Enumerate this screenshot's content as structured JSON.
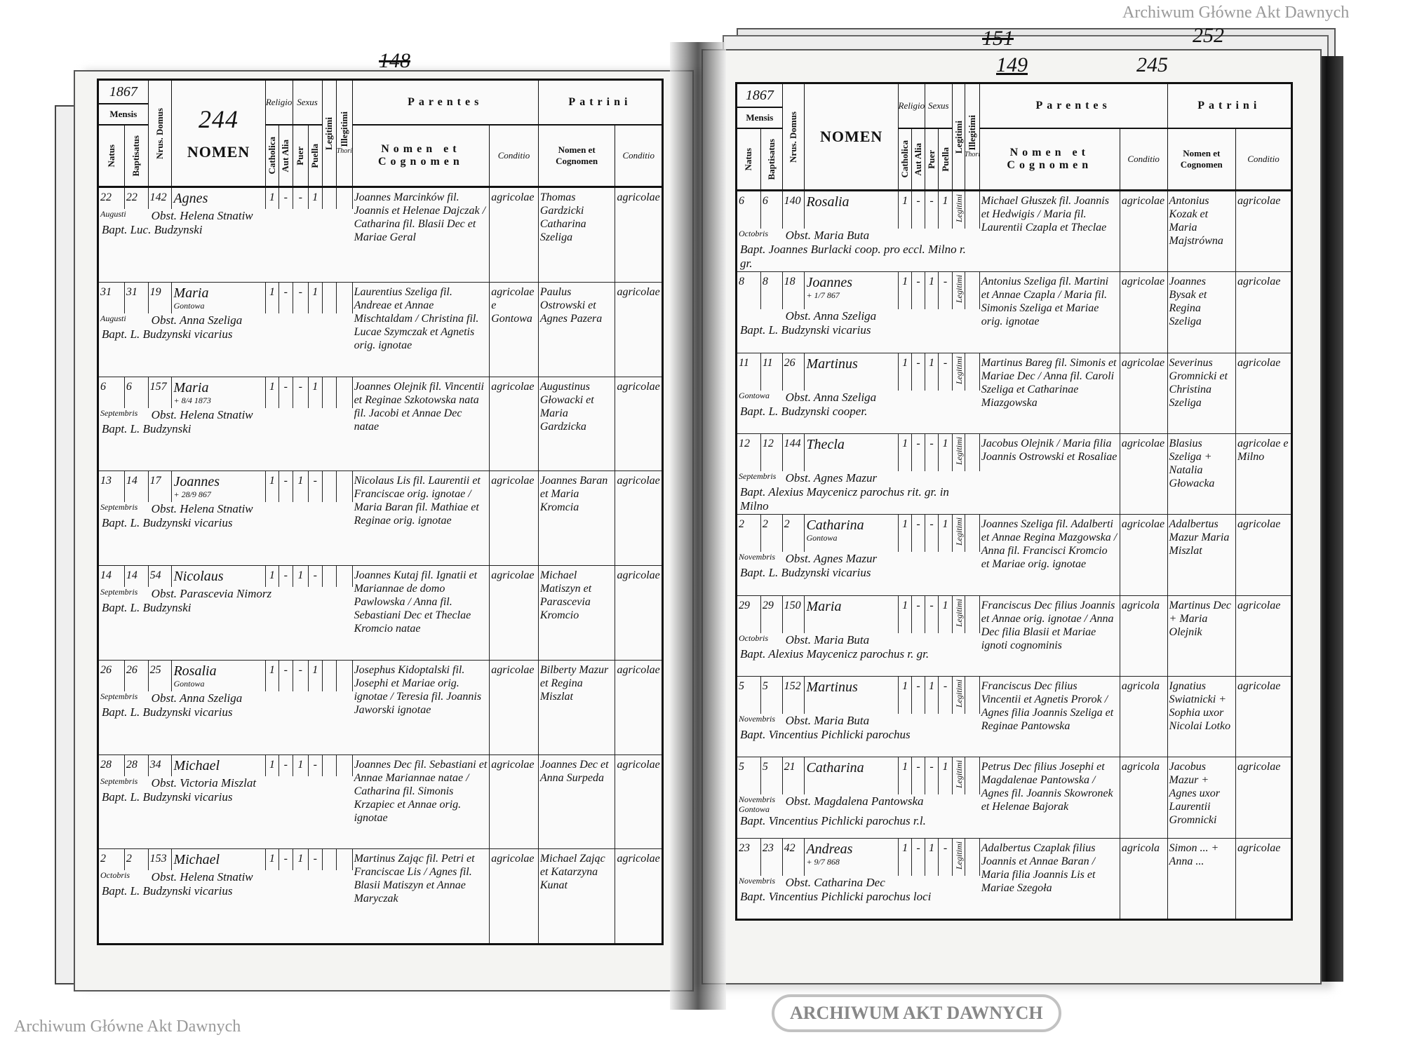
{
  "archive_watermark": "Archiwum Główne Akt Dawnych",
  "seal_text": "ARCHIWUM AKT DAWNYCH",
  "left_page": {
    "page_number": "244",
    "folio_marks": [
      "148"
    ],
    "year": "1867",
    "headers": {
      "mensis": "Mensis",
      "natus": "Natus",
      "baptisatus": "Baptisatus",
      "domus": "Nrus. Domus",
      "nomen": "NOMEN",
      "religio": "Religio",
      "catholica": "Catholica",
      "aut_alia": "Aut Alia",
      "sexus": "Sexus",
      "puer": "Puer",
      "puella": "Puella",
      "legitimi": "Legitimi",
      "illegitimi": "Illegitimi",
      "thori": "Thori",
      "parentes": "Parentes",
      "nomen_et_cognomen": "Nomen et Cognomen",
      "conditio": "Conditio",
      "patrini": "Patrini"
    },
    "entries": [
      {
        "month": "Augusti",
        "natus": "22",
        "baptisatus": "22",
        "domus": "142",
        "nomen": "Agnes",
        "note": "",
        "cath": "1",
        "aut": "-",
        "puer": "-",
        "puella": "1",
        "legit": "",
        "parents": "Joannes Marcinków fil. Joannis et Helenae Dajczak / Catharina fil. Blasii Dec et Mariae Geral",
        "parents_cond": "agricolae",
        "patrini": "Thomas Gardzicki Catharina Szeliga",
        "patrini_cond": "agricolae",
        "obst": "Obst. Helena Stnatiw",
        "bapt": "Bapt. Luc. Budzynski"
      },
      {
        "month": "Augusti",
        "natus": "31",
        "baptisatus": "31",
        "domus": "19",
        "nomen": "Maria",
        "note": "Gontowa",
        "cath": "1",
        "aut": "-",
        "puer": "-",
        "puella": "1",
        "legit": "",
        "parents": "Laurentius Szeliga fil. Andreae et Annae Mischtaldam / Christina fil. Lucae Szymczak et Agnetis orig. ignotae",
        "parents_cond": "agricolae e Gontowa",
        "patrini": "Paulus Ostrowski et Agnes Pazera",
        "patrini_cond": "agricolae",
        "obst": "Obst. Anna Szeliga",
        "bapt": "Bapt. L. Budzynski vicarius"
      },
      {
        "month": "Septembris",
        "natus": "6",
        "baptisatus": "6",
        "domus": "157",
        "nomen": "Maria",
        "note": "+ 8/4 1873",
        "cath": "1",
        "aut": "-",
        "puer": "-",
        "puella": "1",
        "legit": "",
        "parents": "Joannes Olejnik fil. Vincentii et Reginae Szkotowska nata fil. Jacobi et Annae Dec natae",
        "parents_cond": "agricolae",
        "patrini": "Augustinus Głowacki et Maria Gardzicka",
        "patrini_cond": "agricolae",
        "obst": "Obst. Helena Stnatiw",
        "bapt": "Bapt. L. Budzynski"
      },
      {
        "month": "Septembris",
        "natus": "13",
        "baptisatus": "14",
        "domus": "17",
        "nomen": "Joannes",
        "note": "+ 28/9 867",
        "cath": "1",
        "aut": "-",
        "puer": "1",
        "puella": "-",
        "legit": "",
        "parents": "Nicolaus Lis fil. Laurentii et Franciscae orig. ignotae / Maria Baran fil. Mathiae et Reginae orig. ignotae",
        "parents_cond": "agricolae",
        "patrini": "Joannes Baran et Maria Kromcia",
        "patrini_cond": "agricolae",
        "obst": "Obst. Helena Stnatiw",
        "bapt": "Bapt. L. Budzynski vicarius"
      },
      {
        "month": "Septembris",
        "natus": "14",
        "baptisatus": "14",
        "domus": "54",
        "nomen": "Nicolaus",
        "note": "",
        "cath": "1",
        "aut": "-",
        "puer": "1",
        "puella": "-",
        "legit": "",
        "parents": "Joannes Kutaj fil. Ignatii et Mariannae de domo Pawlowska / Anna fil. Sebastiani Dec et Theclae Kromcio natae",
        "parents_cond": "agricolae",
        "patrini": "Michael Matiszyn et Parascevia Kromcio",
        "patrini_cond": "agricolae",
        "obst": "Obst. Parascevia Nimorz",
        "bapt": "Bapt. L. Budzynski"
      },
      {
        "month": "Septembris",
        "natus": "26",
        "baptisatus": "26",
        "domus": "25",
        "nomen": "Rosalia",
        "note": "Gontowa",
        "cath": "1",
        "aut": "-",
        "puer": "-",
        "puella": "1",
        "legit": "",
        "parents": "Josephus Kidoptalski fil. Josephi et Mariae orig. ignotae / Teresia fil. Joannis Jaworski ignotae",
        "parents_cond": "agricolae",
        "patrini": "Bilberty Mazur et Regina Miszlat",
        "patrini_cond": "agricolae",
        "obst": "Obst. Anna Szeliga",
        "bapt": "Bapt. L. Budzynski vicarius"
      },
      {
        "month": "Septembris",
        "natus": "28",
        "baptisatus": "28",
        "domus": "34",
        "nomen": "Michael",
        "note": "",
        "cath": "1",
        "aut": "-",
        "puer": "1",
        "puella": "-",
        "legit": "",
        "parents": "Joannes Dec fil. Sebastiani et Annae Mariannae natae / Catharina fil. Simonis Krzapiec et Annae orig. ignotae",
        "parents_cond": "agricolae",
        "patrini": "Joannes Dec et Anna Surpeda",
        "patrini_cond": "agricolae",
        "obst": "Obst. Victoria Miszlat",
        "bapt": "Bapt. L. Budzynski vicarius"
      },
      {
        "month": "Octobris",
        "natus": "2",
        "baptisatus": "2",
        "domus": "153",
        "nomen": "Michael",
        "note": "",
        "cath": "1",
        "aut": "-",
        "puer": "1",
        "puella": "-",
        "legit": "",
        "parents": "Martinus Zając fil. Petri et Franciscae Lis / Agnes fil. Blasii Matiszyn et Annae Maryczak",
        "parents_cond": "agricolae",
        "patrini": "Michael Zając et Katarzyna Kunat",
        "patrini_cond": "agricolae",
        "obst": "Obst. Helena Stnatiw",
        "bapt": "Bapt. L. Budzynski vicarius"
      }
    ]
  },
  "right_page": {
    "page_number": "245",
    "folio_marks": [
      "151",
      "149",
      "252"
    ],
    "year": "1867",
    "entries": [
      {
        "month": "Octobris",
        "natus": "6",
        "baptisatus": "6",
        "domus": "140",
        "nomen": "Rosalia",
        "note": "",
        "cath": "1",
        "aut": "-",
        "puer": "-",
        "puella": "1",
        "legit": "Legitimi",
        "parents": "Michael Głuszek fil. Joannis et Hedwigis / Maria fil. Laurentii Czapla et Theclae",
        "parents_cond": "agricolae",
        "patrini": "Antonius Kozak et Maria Majstrówna",
        "patrini_cond": "agricolae",
        "obst": "Obst. Maria Buta",
        "bapt": "Bapt. Joannes Burlacki coop. pro eccl. Milno r. gr."
      },
      {
        "month": "",
        "natus": "8",
        "baptisatus": "8",
        "domus": "18",
        "nomen": "Joannes",
        "note": "+ 1/7 867",
        "cath": "1",
        "aut": "-",
        "puer": "1",
        "puella": "-",
        "legit": "Legitimi",
        "parents": "Antonius Szeliga fil. Martini et Annae Czapla / Maria fil. Simonis Szeliga et Mariae orig. ignotae",
        "parents_cond": "agricolae",
        "patrini": "Joannes Bysak et Regina Szeliga",
        "patrini_cond": "agricolae",
        "obst": "Obst. Anna Szeliga",
        "bapt": "Bapt. L. Budzynski vicarius"
      },
      {
        "month": "Gontowa",
        "natus": "11",
        "baptisatus": "11",
        "domus": "26",
        "nomen": "Martinus",
        "note": "",
        "cath": "1",
        "aut": "-",
        "puer": "1",
        "puella": "-",
        "legit": "Legitimi",
        "parents": "Martinus Bareg fil. Simonis et Mariae Dec / Anna fil. Caroli Szeliga et Catharinae Miazgowska",
        "parents_cond": "agricolae",
        "patrini": "Severinus Gromnicki et Christina Szeliga",
        "patrini_cond": "agricolae",
        "obst": "Obst. Anna Szeliga",
        "bapt": "Bapt. L. Budzynski cooper."
      },
      {
        "month": "Septembris",
        "natus": "12",
        "baptisatus": "12",
        "domus": "144",
        "nomen": "Thecla",
        "note": "",
        "cath": "1",
        "aut": "-",
        "puer": "-",
        "puella": "1",
        "legit": "Legitimi",
        "parents": "Jacobus Olejnik / Maria filia Joannis Ostrowski et Rosaliae",
        "parents_cond": "agricolae",
        "patrini": "Blasius Szeliga + Natalia Głowacka",
        "patrini_cond": "agricolae e Milno",
        "obst": "Obst. Agnes Mazur",
        "bapt": "Bapt. Alexius Maycenicz parochus rit. gr. in Milno"
      },
      {
        "month": "Novembris",
        "natus": "2",
        "baptisatus": "2",
        "domus": "2",
        "nomen": "Catharina",
        "note": "Gontowa",
        "cath": "1",
        "aut": "-",
        "puer": "-",
        "puella": "1",
        "legit": "Legitimi",
        "parents": "Joannes Szeliga fil. Adalberti et Annae Regina Mazgowska / Anna fil. Francisci Kromcio et Mariae orig. ignotae",
        "parents_cond": "agricolae",
        "patrini": "Adalbertus Mazur Maria Miszlat",
        "patrini_cond": "agricolae",
        "obst": "Obst. Agnes Mazur",
        "bapt": "Bapt. L. Budzynski vicarius"
      },
      {
        "month": "Octobris",
        "natus": "29",
        "baptisatus": "29",
        "domus": "150",
        "nomen": "Maria",
        "note": "",
        "cath": "1",
        "aut": "-",
        "puer": "-",
        "puella": "1",
        "legit": "Legitimi",
        "parents": "Franciscus Dec filius Joannis et Annae orig. ignotae / Anna Dec filia Blasii et Mariae ignoti cognominis",
        "parents_cond": "agricola",
        "patrini": "Martinus Dec + Maria Olejnik",
        "patrini_cond": "agricolae",
        "obst": "Obst. Maria Buta",
        "bapt": "Bapt. Alexius Maycenicz parochus r. gr."
      },
      {
        "month": "Novembris",
        "natus": "5",
        "baptisatus": "5",
        "domus": "152",
        "nomen": "Martinus",
        "note": "",
        "cath": "1",
        "aut": "-",
        "puer": "1",
        "puella": "-",
        "legit": "Legitimi",
        "parents": "Franciscus Dec filius Vincentii et Agnetis Prorok / Agnes filia Joannis Szeliga et Reginae Pantowska",
        "parents_cond": "agricola",
        "patrini": "Ignatius Swiatnicki + Sophia uxor Nicolai Lotko",
        "patrini_cond": "agricolae",
        "obst": "Obst. Maria Buta",
        "bapt": "Bapt. Vincentius Pichlicki parochus"
      },
      {
        "month": "Novembris Gontowa",
        "natus": "5",
        "baptisatus": "5",
        "domus": "21",
        "nomen": "Catharina",
        "note": "",
        "cath": "1",
        "aut": "-",
        "puer": "-",
        "puella": "1",
        "legit": "Legitimi",
        "parents": "Petrus Dec filius Josephi et Magdalenae Pantowska / Agnes fil. Joannis Skowronek et Helenae Bajorak",
        "parents_cond": "agricola",
        "patrini": "Jacobus Mazur + Agnes uxor Laurentii Gromnicki",
        "patrini_cond": "agricolae",
        "obst": "Obst. Magdalena Pantowska",
        "bapt": "Bapt. Vincentius Pichlicki parochus r.l."
      },
      {
        "month": "Novembris",
        "natus": "23",
        "baptisatus": "23",
        "domus": "42",
        "nomen": "Andreas",
        "note": "+ 9/7 868",
        "cath": "1",
        "aut": "-",
        "puer": "1",
        "puella": "-",
        "legit": "Legitimi",
        "parents": "Adalbertus Czaplak filius Joannis et Annae Baran / Maria filia Joannis Lis et Mariae Szegoła",
        "parents_cond": "agricola",
        "patrini": "Simon ... + Anna ...",
        "patrini_cond": "agricolae",
        "obst": "Obst. Catharina Dec",
        "bapt": "Bapt. Vincentius Pichlicki parochus loci"
      }
    ]
  }
}
